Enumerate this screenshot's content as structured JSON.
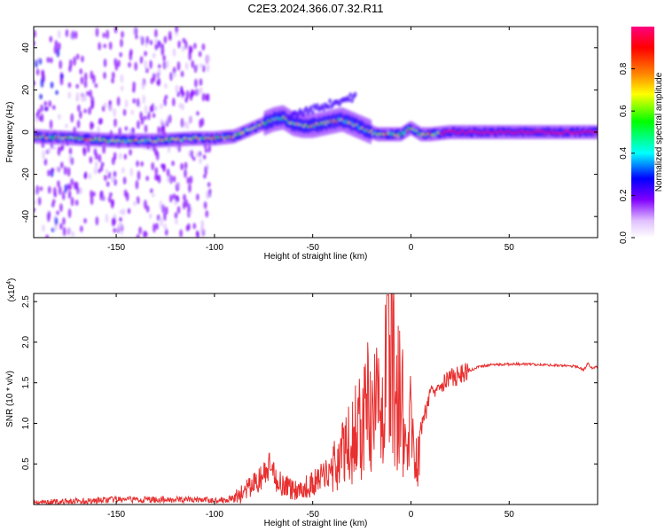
{
  "title": "C2E3.2024.366.07.32.R11",
  "chart_data": [
    {
      "type": "heatmap",
      "xlabel": "Height of straight line (km)",
      "ylabel": "Frequency (Hz)",
      "xlim": [
        -192,
        95
      ],
      "ylim": [
        -50,
        50
      ],
      "xticks": [
        -150,
        -100,
        -50,
        0,
        50
      ],
      "yticks": [
        -40,
        -20,
        0,
        20,
        40
      ],
      "colorbar": {
        "label": "Normalized spectral amplitude",
        "range": [
          0,
          1
        ],
        "ticks": [
          0.0,
          0.2,
          0.4,
          0.6,
          0.8
        ],
        "colormap": [
          "#ffffff",
          "#e0c0ff",
          "#8000ff",
          "#0000ff",
          "#00ffff",
          "#00ff00",
          "#ffff00",
          "#ff8000",
          "#ff0000",
          "#ff0080"
        ]
      },
      "ridge_center_hz": [
        [
          -192,
          -2
        ],
        [
          -170,
          -3
        ],
        [
          -150,
          -4
        ],
        [
          -130,
          -4
        ],
        [
          -110,
          -3
        ],
        [
          -100,
          -3
        ],
        [
          -90,
          -2
        ],
        [
          -85,
          0
        ],
        [
          -80,
          2
        ],
        [
          -75,
          4
        ],
        [
          -70,
          6
        ],
        [
          -65,
          7
        ],
        [
          -60,
          4
        ],
        [
          -55,
          3
        ],
        [
          -50,
          3
        ],
        [
          -45,
          4
        ],
        [
          -40,
          5
        ],
        [
          -35,
          6
        ],
        [
          -30,
          4
        ],
        [
          -25,
          2
        ],
        [
          -20,
          0
        ],
        [
          -17,
          -1
        ],
        [
          -10,
          -1
        ],
        [
          -5,
          -1
        ],
        [
          0,
          2
        ],
        [
          5,
          -1
        ],
        [
          10,
          -1
        ],
        [
          20,
          0
        ],
        [
          40,
          0
        ],
        [
          60,
          0
        ],
        [
          95,
          0
        ]
      ]
    },
    {
      "type": "line",
      "xlabel": "Height of straight line (km)",
      "ylabel": "SNR (10 * v/v)",
      "y_multiplier_label": "(x10",
      "y_multiplier_exp": "4",
      "y_multiplier_close": ")",
      "xlim": [
        -192,
        95
      ],
      "ylim": [
        0,
        2.6
      ],
      "xticks": [
        -150,
        -100,
        -50,
        0,
        50
      ],
      "yticks": [
        0.5,
        1.0,
        1.5,
        2.0,
        2.5
      ],
      "ytick_labels": [
        "0.5",
        "1.0",
        "1.5",
        "2.0",
        "2.5"
      ],
      "color": "#e83030",
      "series": [
        {
          "x": [
            -192,
            -180,
            -170,
            -160,
            -150,
            -140,
            -130,
            -120,
            -110,
            -100,
            -95,
            -90,
            -85,
            -80,
            -75,
            -72,
            -70,
            -65,
            -60,
            -55,
            -50,
            -45,
            -40,
            -35,
            -30,
            -25,
            -22,
            -20,
            -17,
            -15,
            -12,
            -10,
            -8,
            -5,
            -3,
            0,
            2,
            5,
            8,
            10,
            15,
            20,
            25,
            30,
            35,
            40,
            50,
            60,
            70,
            80,
            85,
            88,
            90,
            92,
            95
          ],
          "y": [
            0.02,
            0.03,
            0.04,
            0.05,
            0.06,
            0.06,
            0.06,
            0.06,
            0.06,
            0.05,
            0.06,
            0.08,
            0.15,
            0.25,
            0.35,
            0.45,
            0.35,
            0.25,
            0.18,
            0.2,
            0.25,
            0.35,
            0.45,
            0.6,
            0.8,
            1.0,
            1.2,
            0.9,
            1.3,
            1.2,
            1.6,
            2.3,
            1.2,
            1.5,
            0.6,
            1.0,
            0.5,
            0.9,
            1.2,
            1.4,
            1.5,
            1.55,
            1.6,
            1.65,
            1.7,
            1.72,
            1.73,
            1.73,
            1.72,
            1.71,
            1.7,
            1.65,
            1.75,
            1.68,
            1.7
          ]
        }
      ]
    }
  ]
}
